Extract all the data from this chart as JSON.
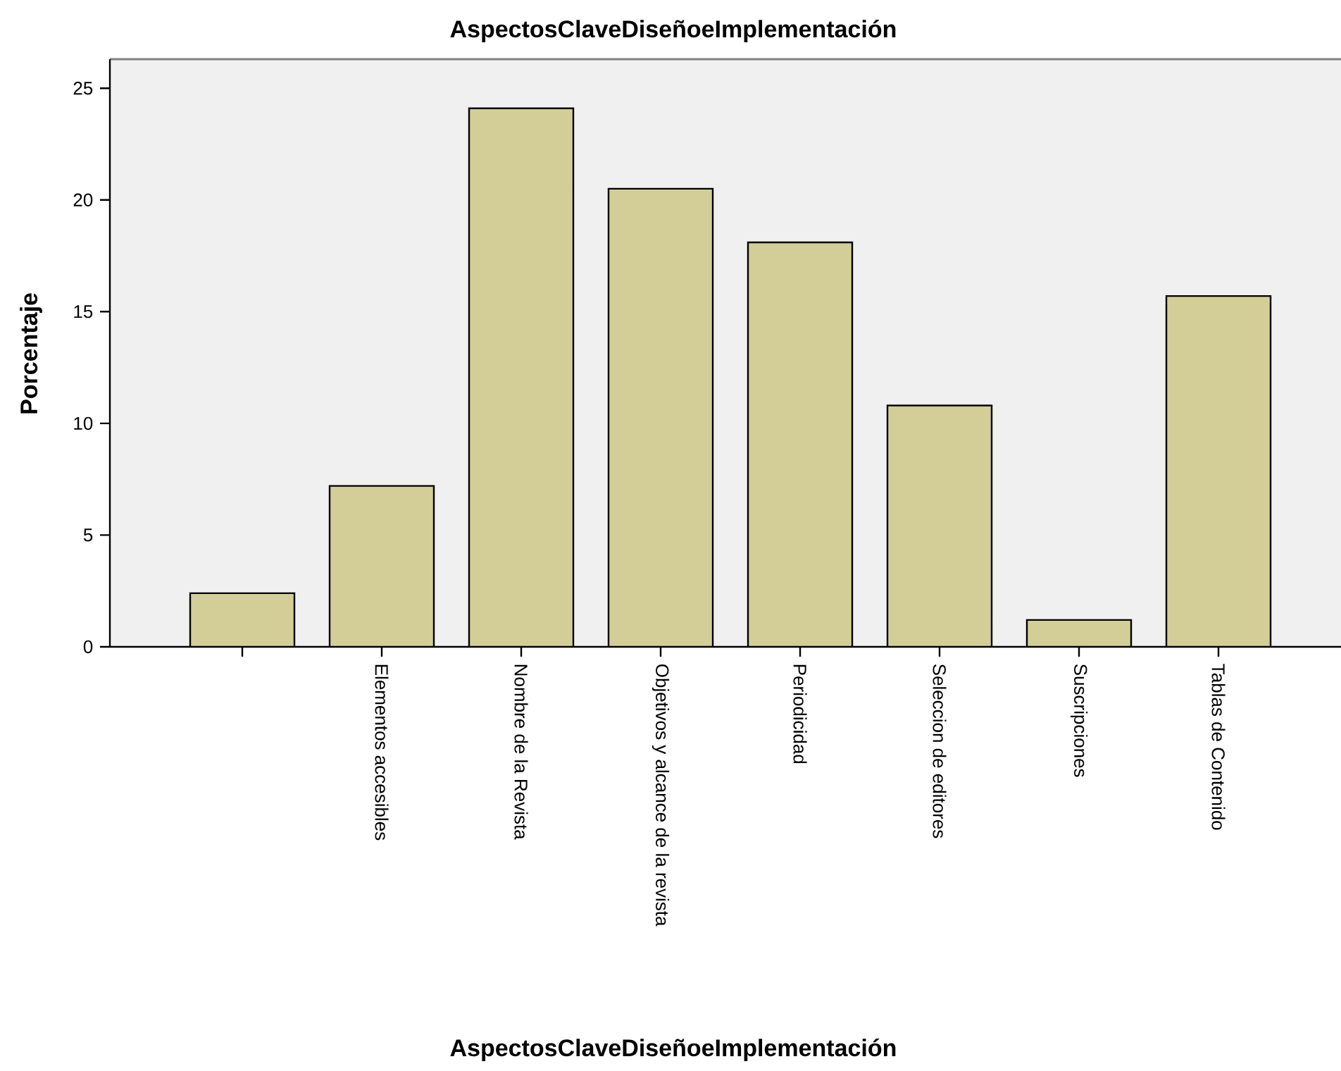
{
  "chart_data": {
    "type": "bar",
    "title": "AspectosClaveDiseñoeImplementación",
    "xlabel": "AspectosClaveDiseñoeImplementación",
    "ylabel": "Porcentaje",
    "categories": [
      null,
      "Elementos accesibles",
      "Nombre de la Revista",
      "Objetivos y alcance de la revista",
      "Periodicidad",
      "Seleccion de editores",
      "Suscripciones",
      "Tablas de Contenido"
    ],
    "values": [
      2.4,
      7.2,
      24.1,
      20.5,
      18.1,
      10.8,
      1.2,
      15.7
    ],
    "color": "#d3ce97",
    "ylim": [
      0,
      26.3
    ],
    "yticks": [
      0,
      5,
      10,
      15,
      20,
      25
    ],
    "grid": false
  }
}
